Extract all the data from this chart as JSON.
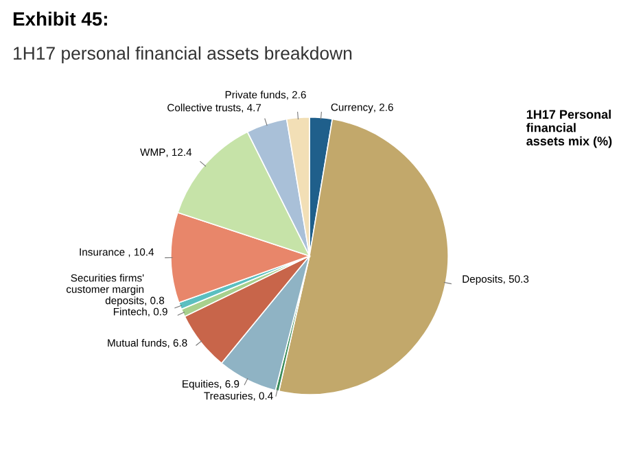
{
  "chart_data": {
    "type": "pie",
    "title": "Exhibit 45:",
    "subtitle": "1H17 personal financial assets breakdown",
    "categories": [
      "Currency",
      "Deposits",
      "Treasuries",
      "Equities",
      "Mutual funds",
      "Fintech",
      "Securities firms' customer margin deposits",
      "Insurance ",
      "WMP",
      "Collective trusts",
      "Private funds"
    ],
    "values": [
      2.6,
      50.3,
      0.4,
      6.9,
      6.8,
      0.9,
      0.8,
      10.4,
      12.4,
      4.7,
      2.6
    ],
    "colors": [
      "#1f5f8b",
      "#c2a86b",
      "#3a8c5a",
      "#8fb3c4",
      "#c8654a",
      "#a8d08d",
      "#5bbfc0",
      "#e8866a",
      "#c6e3a8",
      "#a9c0d8",
      "#f2dfb6"
    ],
    "value_labels": [
      ", 2.6",
      ", 50.3",
      ", 0.4",
      ", 6.9",
      ", 6.8",
      ", 0.9",
      ", 0.8",
      ", 10.4",
      ", 12.4",
      ", 4.7",
      ", 2.6"
    ],
    "annotations": [
      "1H17 Personal financial assets mix (%)"
    ]
  }
}
